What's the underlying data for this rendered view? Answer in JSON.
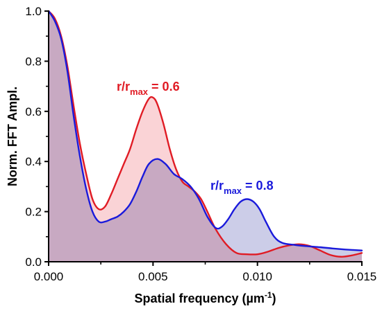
{
  "chart_data": {
    "type": "area",
    "xlabel": {
      "main": "Spatial frequency (µm",
      "sup": "-1",
      "close": ")"
    },
    "ylabel": "Norm. FFT Ampl.",
    "xlim": [
      0,
      0.015
    ],
    "ylim": [
      0,
      1.0
    ],
    "x_ticks": [
      0.0,
      0.005,
      0.01,
      0.015
    ],
    "x_tick_labels": [
      "0.000",
      "0.005",
      "0.010",
      "0.015"
    ],
    "y_ticks": [
      0.0,
      0.2,
      0.4,
      0.6,
      0.8,
      1.0
    ],
    "y_tick_labels": [
      "0.0",
      "0.2",
      "0.4",
      "0.6",
      "0.8",
      "1.0"
    ],
    "grid": false,
    "series": [
      {
        "color": "#e01b24",
        "fill": "#fad3d6",
        "label": {
          "pre": "r/r",
          "sub": "max",
          "post": " = 0.6"
        },
        "points": [
          [
            0.0,
            1.0
          ],
          [
            0.0003,
            0.97
          ],
          [
            0.0006,
            0.9
          ],
          [
            0.0009,
            0.78
          ],
          [
            0.0012,
            0.62
          ],
          [
            0.0015,
            0.47
          ],
          [
            0.0018,
            0.35
          ],
          [
            0.0021,
            0.25
          ],
          [
            0.0024,
            0.21
          ],
          [
            0.0027,
            0.22
          ],
          [
            0.003,
            0.27
          ],
          [
            0.0033,
            0.33
          ],
          [
            0.0036,
            0.39
          ],
          [
            0.0039,
            0.45
          ],
          [
            0.0042,
            0.53
          ],
          [
            0.0045,
            0.6
          ],
          [
            0.0048,
            0.65
          ],
          [
            0.005,
            0.655
          ],
          [
            0.0052,
            0.63
          ],
          [
            0.0055,
            0.55
          ],
          [
            0.0058,
            0.45
          ],
          [
            0.0061,
            0.37
          ],
          [
            0.0064,
            0.32
          ],
          [
            0.0067,
            0.3
          ],
          [
            0.007,
            0.28
          ],
          [
            0.0073,
            0.25
          ],
          [
            0.0076,
            0.2
          ],
          [
            0.008,
            0.13
          ],
          [
            0.0085,
            0.07
          ],
          [
            0.009,
            0.035
          ],
          [
            0.0095,
            0.03
          ],
          [
            0.01,
            0.03
          ],
          [
            0.0105,
            0.04
          ],
          [
            0.011,
            0.055
          ],
          [
            0.0115,
            0.065
          ],
          [
            0.012,
            0.07
          ],
          [
            0.0125,
            0.063
          ],
          [
            0.013,
            0.045
          ],
          [
            0.0135,
            0.027
          ],
          [
            0.014,
            0.02
          ],
          [
            0.0145,
            0.025
          ],
          [
            0.015,
            0.035
          ]
        ]
      },
      {
        "color": "#1a1adb",
        "fill": "#cccde8",
        "label": {
          "pre": "r/r",
          "sub": "max",
          "post": " = 0.8"
        },
        "points": [
          [
            0.0,
            1.0
          ],
          [
            0.0003,
            0.96
          ],
          [
            0.0006,
            0.89
          ],
          [
            0.0009,
            0.76
          ],
          [
            0.0012,
            0.58
          ],
          [
            0.0015,
            0.42
          ],
          [
            0.0018,
            0.29
          ],
          [
            0.0021,
            0.2
          ],
          [
            0.0024,
            0.16
          ],
          [
            0.0027,
            0.16
          ],
          [
            0.003,
            0.17
          ],
          [
            0.0033,
            0.18
          ],
          [
            0.0036,
            0.2
          ],
          [
            0.0039,
            0.23
          ],
          [
            0.0042,
            0.28
          ],
          [
            0.0045,
            0.34
          ],
          [
            0.0048,
            0.39
          ],
          [
            0.0052,
            0.41
          ],
          [
            0.0056,
            0.39
          ],
          [
            0.006,
            0.35
          ],
          [
            0.0064,
            0.33
          ],
          [
            0.0068,
            0.3
          ],
          [
            0.0072,
            0.25
          ],
          [
            0.0076,
            0.18
          ],
          [
            0.008,
            0.135
          ],
          [
            0.0083,
            0.14
          ],
          [
            0.0086,
            0.17
          ],
          [
            0.0089,
            0.21
          ],
          [
            0.0092,
            0.24
          ],
          [
            0.0095,
            0.25
          ],
          [
            0.0098,
            0.24
          ],
          [
            0.0101,
            0.21
          ],
          [
            0.0104,
            0.16
          ],
          [
            0.0108,
            0.1
          ],
          [
            0.0112,
            0.075
          ],
          [
            0.0118,
            0.067
          ],
          [
            0.0124,
            0.062
          ],
          [
            0.013,
            0.058
          ],
          [
            0.0136,
            0.053
          ],
          [
            0.0142,
            0.049
          ],
          [
            0.015,
            0.045
          ]
        ]
      }
    ]
  }
}
